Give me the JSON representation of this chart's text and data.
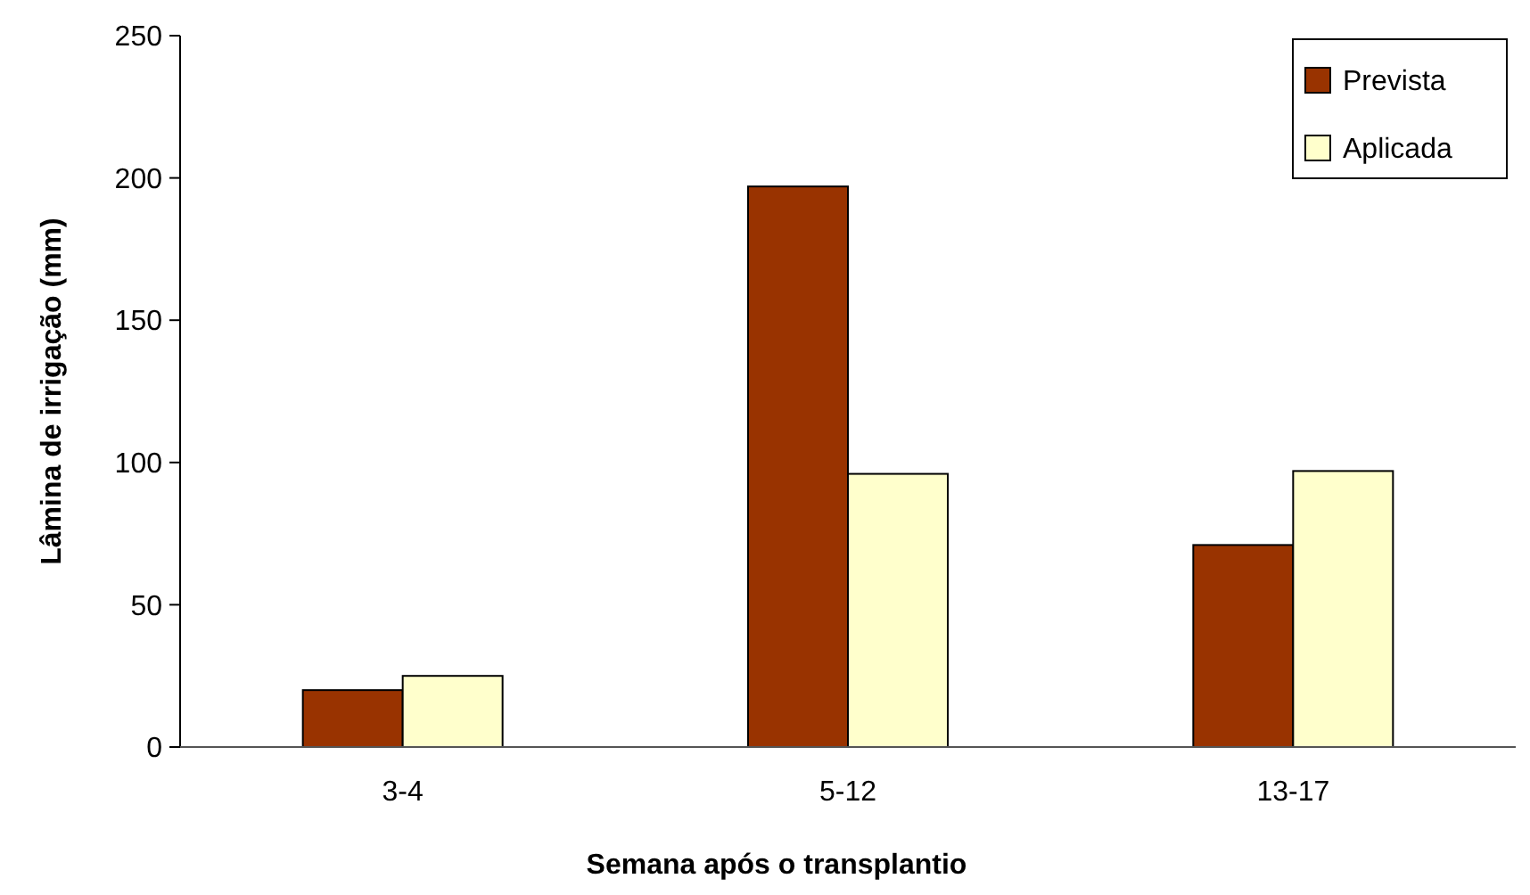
{
  "chart_data": {
    "type": "bar",
    "xlabel": "Semana após o transplantio",
    "ylabel": "Lâmina de irrigação (mm)",
    "categories": [
      "3-4",
      "5-12",
      "13-17"
    ],
    "series": [
      {
        "name": "Prevista",
        "color": "#993300",
        "values": [
          20,
          197,
          71
        ]
      },
      {
        "name": "Aplicada",
        "color": "#ffffcc",
        "values": [
          25,
          96,
          97
        ]
      }
    ],
    "ylim": [
      0,
      250
    ],
    "yticks": [
      0,
      50,
      100,
      150,
      200,
      250
    ],
    "grid": false,
    "legend": "top right"
  }
}
